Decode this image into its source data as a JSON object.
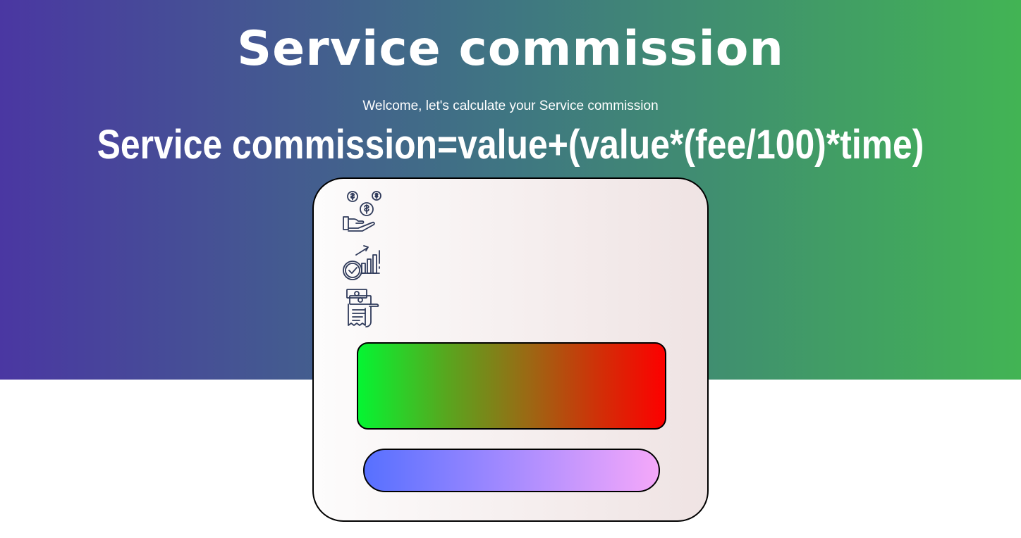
{
  "header": {
    "title": "Service commission",
    "subtitle": "Welcome, let's calculate your Service commission",
    "formula": "Service commission=value+(value*(fee/100)*time)"
  },
  "card": {
    "icons": [
      "coins-hand-icon",
      "growth-clock-icon",
      "receipt-money-icon"
    ],
    "calculate_button": {
      "label": ""
    },
    "result": {
      "value": ""
    }
  },
  "colors": {
    "hero_gradient": [
      "#4a37a2",
      "#3f7682",
      "#42b454"
    ],
    "button_gradient": [
      "#05f532",
      "#9a6a14",
      "#fd0000"
    ],
    "result_gradient": [
      "#5770ff",
      "#9e88ff",
      "#f5a8fa"
    ],
    "icon_stroke": "#2f3a5a"
  }
}
